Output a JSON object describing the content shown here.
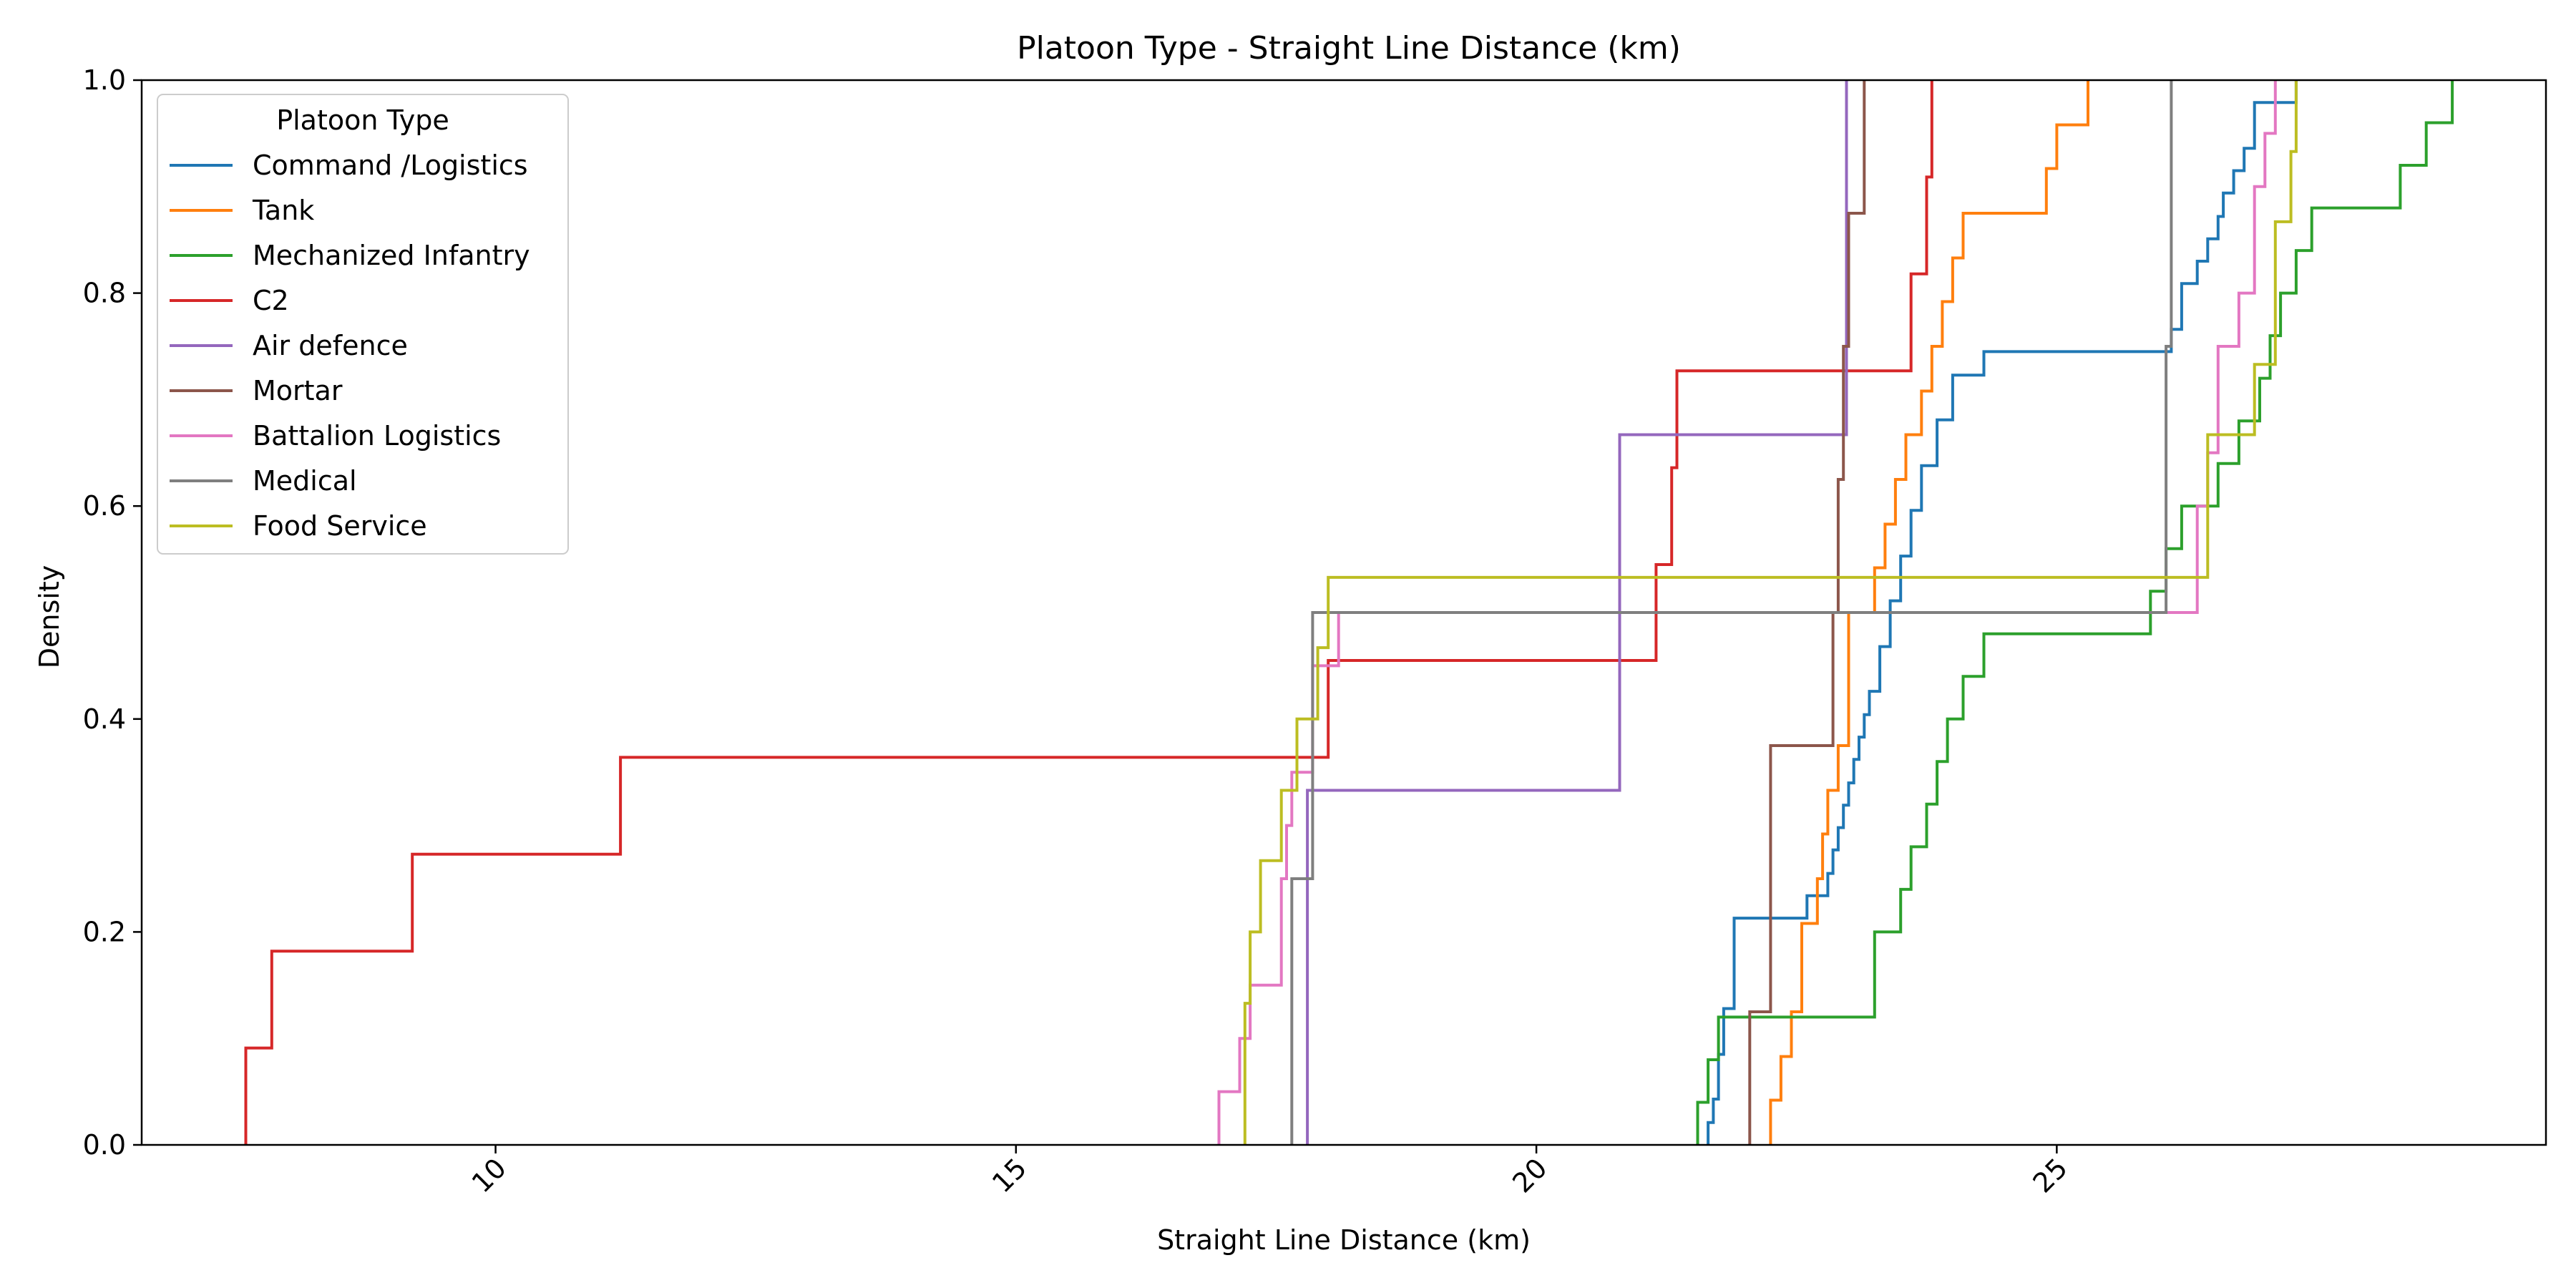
{
  "chart_data": {
    "type": "line",
    "title": "Platoon Type - Straight Line Distance (km)",
    "xlabel": "Straight Line Distance (km)",
    "ylabel": "Density",
    "xlim": [
      6.6,
      29.7
    ],
    "ylim": [
      0.0,
      1.0
    ],
    "xticks": [
      10,
      15,
      20,
      25
    ],
    "xtick_labels": [
      "10",
      "15",
      "20",
      "25"
    ],
    "yticks": [
      0.0,
      0.2,
      0.4,
      0.6,
      0.8,
      1.0
    ],
    "ytick_labels": [
      "0.0",
      "0.2",
      "0.4",
      "0.6",
      "0.8",
      "1.0"
    ],
    "grid": false,
    "legend": {
      "title": "Platoon Type",
      "position": "upper-left"
    },
    "series": [
      {
        "name": "Command /Logistics",
        "color": "#1f77b4",
        "x": [
          21.65,
          21.7,
          21.75,
          21.8,
          21.9,
          22.6,
          22.8,
          22.85,
          22.9,
          22.95,
          23.0,
          23.05,
          23.1,
          23.15,
          23.2,
          23.3,
          23.4,
          23.5,
          23.6,
          23.7,
          23.85,
          24.0,
          24.3,
          26.1,
          26.2,
          26.35,
          26.45,
          26.55,
          26.6,
          26.7,
          26.8,
          26.9,
          27.3
        ],
        "y": [
          0.021,
          0.043,
          0.085,
          0.128,
          0.213,
          0.234,
          0.255,
          0.277,
          0.298,
          0.319,
          0.34,
          0.362,
          0.383,
          0.404,
          0.426,
          0.468,
          0.511,
          0.553,
          0.596,
          0.638,
          0.681,
          0.723,
          0.745,
          0.766,
          0.809,
          0.83,
          0.851,
          0.872,
          0.894,
          0.915,
          0.936,
          0.979,
          1.0
        ]
      },
      {
        "name": "Tank",
        "color": "#ff7f0e",
        "x": [
          22.25,
          22.35,
          22.45,
          22.55,
          22.7,
          22.75,
          22.8,
          22.9,
          23.0,
          23.25,
          23.35,
          23.45,
          23.55,
          23.7,
          23.8,
          23.9,
          24.0,
          24.1,
          24.3,
          24.9,
          25.0,
          25.3
        ],
        "y": [
          0.042,
          0.083,
          0.125,
          0.208,
          0.25,
          0.292,
          0.333,
          0.375,
          0.5,
          0.542,
          0.583,
          0.625,
          0.667,
          0.708,
          0.75,
          0.792,
          0.833,
          0.875,
          0.875,
          0.917,
          0.958,
          1.0
        ]
      },
      {
        "name": "Mechanized Infantry",
        "color": "#2ca02c",
        "x": [
          21.55,
          21.65,
          21.75,
          22.4,
          23.25,
          23.5,
          23.6,
          23.75,
          23.85,
          23.95,
          24.1,
          24.3,
          25.9,
          26.05,
          26.2,
          26.55,
          26.75,
          26.95,
          27.05,
          27.15,
          27.3,
          27.45,
          27.6,
          28.3,
          28.55,
          28.8
        ],
        "y": [
          0.04,
          0.08,
          0.12,
          0.12,
          0.2,
          0.24,
          0.28,
          0.32,
          0.36,
          0.4,
          0.44,
          0.48,
          0.52,
          0.56,
          0.6,
          0.64,
          0.68,
          0.72,
          0.76,
          0.8,
          0.84,
          0.88,
          0.88,
          0.92,
          0.96,
          1.0
        ]
      },
      {
        "name": "C2",
        "color": "#d62728",
        "x": [
          7.6,
          7.85,
          9.2,
          11.2,
          18.0,
          21.15,
          21.3,
          21.35,
          22.95,
          23.6,
          23.75,
          23.8
        ],
        "y": [
          0.091,
          0.182,
          0.273,
          0.364,
          0.455,
          0.545,
          0.636,
          0.727,
          0.727,
          0.818,
          0.909,
          1.0
        ]
      },
      {
        "name": "Air defence",
        "color": "#9467bd",
        "x": [
          17.8,
          20.8,
          22.95,
          22.98
        ],
        "y": [
          0.333,
          0.667,
          0.667,
          1.0
        ]
      },
      {
        "name": "Mortar",
        "color": "#8c564b",
        "x": [
          22.05,
          22.2,
          22.25,
          22.85,
          22.9,
          22.95,
          23.0,
          23.05,
          23.15
        ],
        "y": [
          0.125,
          0.125,
          0.375,
          0.5,
          0.625,
          0.75,
          0.875,
          0.875,
          1.0
        ]
      },
      {
        "name": "Battalion Logistics",
        "color": "#e377c2",
        "x": [
          16.95,
          17.15,
          17.25,
          17.35,
          17.55,
          17.6,
          17.65,
          17.85,
          17.95,
          18.1,
          26.25,
          26.35,
          26.45,
          26.55,
          26.75,
          26.9,
          27.0,
          27.1
        ],
        "y": [
          0.05,
          0.1,
          0.15,
          0.15,
          0.25,
          0.3,
          0.35,
          0.45,
          0.45,
          0.5,
          0.5,
          0.6,
          0.65,
          0.75,
          0.8,
          0.9,
          0.95,
          1.0
        ]
      },
      {
        "name": "Medical",
        "color": "#7f7f7f",
        "x": [
          17.65,
          17.75,
          17.85,
          25.95,
          26.05,
          26.1
        ],
        "y": [
          0.25,
          0.25,
          0.5,
          0.5,
          0.75,
          1.0
        ]
      },
      {
        "name": "Food Service",
        "color": "#bcbd22",
        "x": [
          17.2,
          17.25,
          17.35,
          17.55,
          17.7,
          17.9,
          18.0,
          26.3,
          26.45,
          26.9,
          27.1,
          27.25,
          27.3
        ],
        "y": [
          0.133,
          0.2,
          0.267,
          0.333,
          0.4,
          0.467,
          0.533,
          0.533,
          0.667,
          0.733,
          0.867,
          0.933,
          1.0
        ]
      }
    ]
  }
}
